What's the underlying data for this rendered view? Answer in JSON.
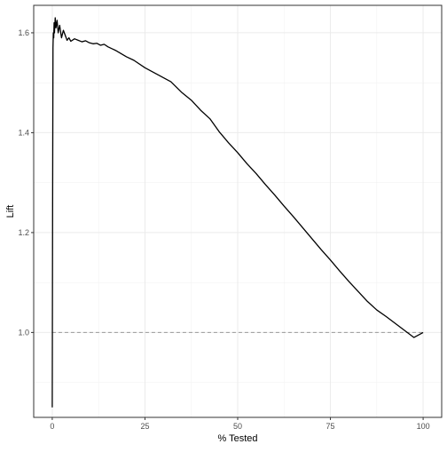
{
  "chart_data": {
    "type": "line",
    "title": "",
    "xlabel": "% Tested",
    "ylabel": "Lift",
    "xlim": [
      -5,
      105
    ],
    "ylim": [
      0.83,
      1.655
    ],
    "x_ticks": [
      0,
      25,
      50,
      75,
      100
    ],
    "x_tick_labels": [
      "0",
      "25",
      "50",
      "75",
      "100"
    ],
    "y_ticks": [
      1.0,
      1.2,
      1.4,
      1.6
    ],
    "y_tick_labels": [
      "1.0",
      "1.2",
      "1.4",
      "1.6"
    ],
    "grid": true,
    "theme": "bw",
    "reference_line": {
      "y": 1.0,
      "x_range": [
        0,
        100
      ],
      "style": "dashed",
      "color": "#999999"
    },
    "series": [
      {
        "color": "#000000",
        "x": [
          0,
          0.1,
          0.2,
          0.3,
          0.4,
          0.5,
          0.6,
          0.8,
          1.0,
          1.3,
          1.6,
          2.0,
          2.5,
          3,
          3.5,
          4,
          4.5,
          5,
          6,
          7,
          8,
          9,
          10,
          11,
          12,
          13,
          14,
          15,
          17,
          20,
          22,
          25,
          27,
          30,
          32,
          35,
          37.5,
          40,
          42.5,
          45,
          47.5,
          50,
          52.5,
          55,
          57.5,
          60,
          62.5,
          65,
          67.5,
          70,
          72.5,
          75,
          77.5,
          80,
          82.5,
          85,
          87.5,
          90,
          92.5,
          95,
          97.5,
          100
        ],
        "y": [
          0.85,
          1.25,
          1.57,
          1.6,
          1.59,
          1.62,
          1.6,
          1.63,
          1.61,
          1.625,
          1.6,
          1.615,
          1.59,
          1.605,
          1.595,
          1.585,
          1.59,
          1.583,
          1.588,
          1.585,
          1.582,
          1.584,
          1.58,
          1.578,
          1.579,
          1.575,
          1.577,
          1.572,
          1.565,
          1.552,
          1.545,
          1.53,
          1.522,
          1.51,
          1.502,
          1.48,
          1.465,
          1.445,
          1.428,
          1.402,
          1.38,
          1.36,
          1.338,
          1.318,
          1.296,
          1.275,
          1.253,
          1.232,
          1.21,
          1.188,
          1.166,
          1.145,
          1.123,
          1.102,
          1.082,
          1.062,
          1.045,
          1.032,
          1.018,
          1.004,
          0.99,
          1.0
        ]
      }
    ]
  }
}
